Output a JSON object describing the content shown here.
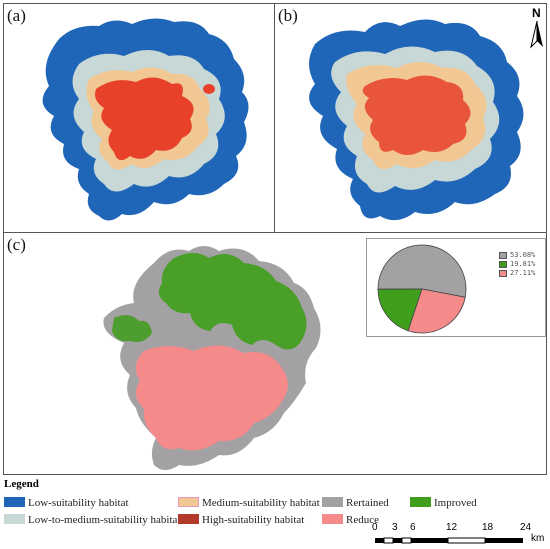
{
  "panels": {
    "a": {
      "label": "(a)"
    },
    "b": {
      "label": "(b)"
    },
    "c": {
      "label": "(c)"
    }
  },
  "north_arrow": {
    "label": "N"
  },
  "pie": {
    "entries": [
      {
        "label": "53.08%",
        "value": 53.08,
        "color": "#a3a1a4"
      },
      {
        "label": "19.81%",
        "value": 19.81,
        "color": "#3f9e1b"
      },
      {
        "label": "27.11%",
        "value": 27.11,
        "color": "#f58a8a"
      }
    ]
  },
  "legend": {
    "title": "Legend",
    "items": {
      "low": {
        "label": "Low-suitability habitat",
        "color": "#2066b8"
      },
      "low_medium": {
        "label": "Low-to-medium-suitability habitat",
        "color": "#c7d8d6"
      },
      "medium": {
        "label": "Medium-suitability habitat",
        "color": "#f1c894"
      },
      "high": {
        "label": "High-suitability habitat",
        "color": "#b23a2a"
      },
      "retained": {
        "label": "Rertained",
        "color": "#a3a1a4"
      },
      "improved": {
        "label": "Improved",
        "color": "#3f9e1b"
      },
      "reduce": {
        "label": "Reduce",
        "color": "#f58a8a"
      }
    }
  },
  "scale_bar": {
    "ticks": [
      "0",
      "3",
      "6",
      "12",
      "18",
      "24"
    ],
    "unit": "km"
  }
}
